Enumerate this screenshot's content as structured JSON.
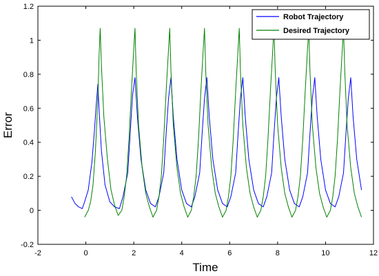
{
  "chart_data": {
    "type": "line",
    "xlabel": "Time",
    "ylabel": "Error",
    "xlim": [
      -2,
      12
    ],
    "ylim": [
      -0.2,
      1.2
    ],
    "xticks": [
      -2,
      0,
      2,
      4,
      6,
      8,
      10,
      12
    ],
    "yticks": [
      -0.2,
      0,
      0.2,
      0.4,
      0.6,
      0.8,
      1,
      1.2
    ],
    "grid": false,
    "legend_position": "top-right",
    "colors": {
      "Robot Trajectory": "#0000ff",
      "Desired Trajectory": "#008000"
    },
    "series": [
      {
        "name": "Robot Trajectory",
        "x": [
          -0.6,
          -0.45,
          -0.3,
          -0.15,
          -0.05,
          0.1,
          0.25,
          0.35,
          0.45,
          0.5,
          0.55,
          0.65,
          0.8,
          1.0,
          1.2,
          1.4,
          1.55,
          1.75,
          1.85,
          1.95,
          2.05,
          2.15,
          2.3,
          2.5,
          2.7,
          2.9,
          3.05,
          3.25,
          3.35,
          3.45,
          3.55,
          3.65,
          3.8,
          4.0,
          4.2,
          4.4,
          4.55,
          4.75,
          4.85,
          4.95,
          5.05,
          5.15,
          5.3,
          5.5,
          5.7,
          5.9,
          6.05,
          6.25,
          6.35,
          6.45,
          6.55,
          6.65,
          6.8,
          7.0,
          7.2,
          7.4,
          7.55,
          7.75,
          7.85,
          7.95,
          8.05,
          8.15,
          8.3,
          8.5,
          8.7,
          8.9,
          9.05,
          9.25,
          9.35,
          9.45,
          9.55,
          9.65,
          9.8,
          10.0,
          10.2,
          10.4,
          10.55,
          10.75,
          10.85,
          10.95,
          11.05,
          11.15,
          11.3,
          11.5
        ],
        "y": [
          0.08,
          0.04,
          0.02,
          0.01,
          0.05,
          0.12,
          0.28,
          0.45,
          0.65,
          0.74,
          0.6,
          0.35,
          0.15,
          0.05,
          0.02,
          0.01,
          0.08,
          0.22,
          0.45,
          0.68,
          0.78,
          0.55,
          0.3,
          0.12,
          0.04,
          0.02,
          0.08,
          0.22,
          0.45,
          0.66,
          0.78,
          0.55,
          0.3,
          0.12,
          0.04,
          0.02,
          0.08,
          0.22,
          0.45,
          0.66,
          0.78,
          0.55,
          0.3,
          0.12,
          0.04,
          0.02,
          0.08,
          0.22,
          0.45,
          0.66,
          0.78,
          0.55,
          0.3,
          0.12,
          0.04,
          0.02,
          0.08,
          0.22,
          0.45,
          0.66,
          0.78,
          0.55,
          0.3,
          0.12,
          0.04,
          0.02,
          0.08,
          0.22,
          0.45,
          0.66,
          0.78,
          0.55,
          0.3,
          0.12,
          0.04,
          0.02,
          0.08,
          0.22,
          0.45,
          0.66,
          0.78,
          0.55,
          0.3,
          0.12
        ]
      },
      {
        "name": "Desired Trajectory",
        "x": [
          -0.05,
          0.1,
          0.2,
          0.3,
          0.4,
          0.5,
          0.55,
          0.6,
          0.65,
          0.75,
          0.9,
          1.05,
          1.2,
          1.35,
          1.5,
          1.6,
          1.7,
          1.8,
          1.9,
          2.0,
          2.05,
          2.1,
          2.2,
          2.35,
          2.5,
          2.65,
          2.8,
          2.95,
          3.05,
          3.15,
          3.25,
          3.35,
          3.45,
          3.5,
          3.55,
          3.65,
          3.8,
          3.95,
          4.1,
          4.25,
          4.4,
          4.5,
          4.6,
          4.7,
          4.8,
          4.9,
          4.95,
          5.0,
          5.1,
          5.25,
          5.4,
          5.55,
          5.7,
          5.85,
          5.95,
          6.05,
          6.15,
          6.25,
          6.35,
          6.4,
          6.45,
          6.55,
          6.7,
          6.85,
          7.0,
          7.15,
          7.3,
          7.4,
          7.5,
          7.6,
          7.7,
          7.8,
          7.85,
          7.9,
          8.0,
          8.15,
          8.3,
          8.45,
          8.6,
          8.75,
          8.85,
          8.95,
          9.05,
          9.15,
          9.25,
          9.3,
          9.35,
          9.45,
          9.6,
          9.75,
          9.9,
          10.05,
          10.2,
          10.3,
          10.4,
          10.5,
          10.6,
          10.7,
          10.75,
          10.8,
          10.9,
          11.05,
          11.2,
          11.35,
          11.5
        ],
        "y": [
          -0.04,
          0.0,
          0.05,
          0.15,
          0.35,
          0.65,
          0.9,
          1.07,
          0.85,
          0.55,
          0.3,
          0.12,
          0.03,
          -0.03,
          0.0,
          0.08,
          0.2,
          0.42,
          0.7,
          0.95,
          1.07,
          0.82,
          0.5,
          0.25,
          0.1,
          0.02,
          -0.04,
          0.0,
          0.08,
          0.2,
          0.42,
          0.7,
          0.95,
          1.07,
          0.82,
          0.5,
          0.25,
          0.1,
          0.02,
          -0.04,
          0.0,
          0.08,
          0.2,
          0.42,
          0.7,
          0.95,
          1.07,
          0.82,
          0.5,
          0.25,
          0.1,
          0.02,
          -0.04,
          0.0,
          0.08,
          0.2,
          0.42,
          0.7,
          0.95,
          1.07,
          0.82,
          0.5,
          0.25,
          0.1,
          0.02,
          -0.04,
          0.0,
          0.08,
          0.2,
          0.42,
          0.7,
          0.95,
          1.07,
          0.82,
          0.5,
          0.25,
          0.1,
          0.02,
          -0.04,
          0.0,
          0.08,
          0.2,
          0.42,
          0.7,
          0.95,
          1.07,
          0.82,
          0.5,
          0.25,
          0.1,
          0.02,
          -0.04,
          0.0,
          0.08,
          0.2,
          0.42,
          0.7,
          0.95,
          1.07,
          0.82,
          0.5,
          0.25,
          0.1,
          0.02,
          -0.04
        ]
      }
    ]
  }
}
